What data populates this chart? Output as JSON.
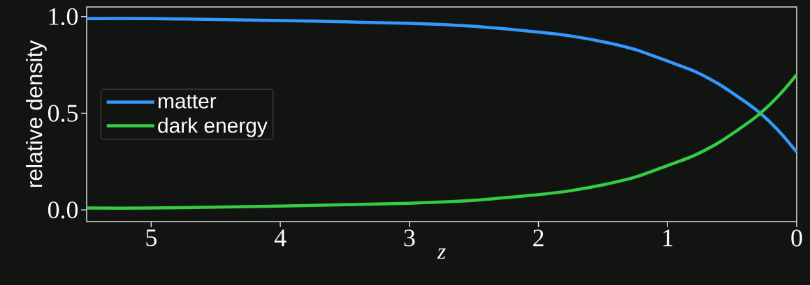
{
  "chart_data": {
    "type": "line",
    "xlabel": "z",
    "ylabel": "relative density",
    "x": [
      5.5,
      5,
      4.5,
      4,
      3.5,
      3,
      2.5,
      2,
      1.75,
      1.5,
      1.25,
      1,
      0.8,
      0.6,
      0.4,
      0.3,
      0.2,
      0.1,
      0
    ],
    "series": [
      {
        "name": "matter",
        "color": "#3399ff",
        "values": [
          0.99,
          0.99,
          0.985,
          0.98,
          0.973,
          0.965,
          0.95,
          0.92,
          0.9,
          0.87,
          0.83,
          0.77,
          0.72,
          0.65,
          0.56,
          0.51,
          0.45,
          0.38,
          0.3
        ]
      },
      {
        "name": "dark energy",
        "color": "#33cc44",
        "values": [
          0.01,
          0.01,
          0.015,
          0.02,
          0.027,
          0.035,
          0.05,
          0.08,
          0.1,
          0.13,
          0.17,
          0.23,
          0.28,
          0.35,
          0.44,
          0.49,
          0.55,
          0.62,
          0.7
        ]
      }
    ],
    "xlim": [
      5.5,
      0
    ],
    "ylim": [
      -0.06,
      1.05
    ],
    "xticks": [
      5,
      4,
      3,
      2,
      1,
      0
    ],
    "yticks": [
      {
        "value": 0,
        "label": "0.0"
      },
      {
        "value": 0.5,
        "label": "0.5"
      },
      {
        "value": 1,
        "label": "1.0"
      }
    ],
    "legend": "center left",
    "grid": false,
    "marker": "none",
    "line_style": "solid"
  }
}
